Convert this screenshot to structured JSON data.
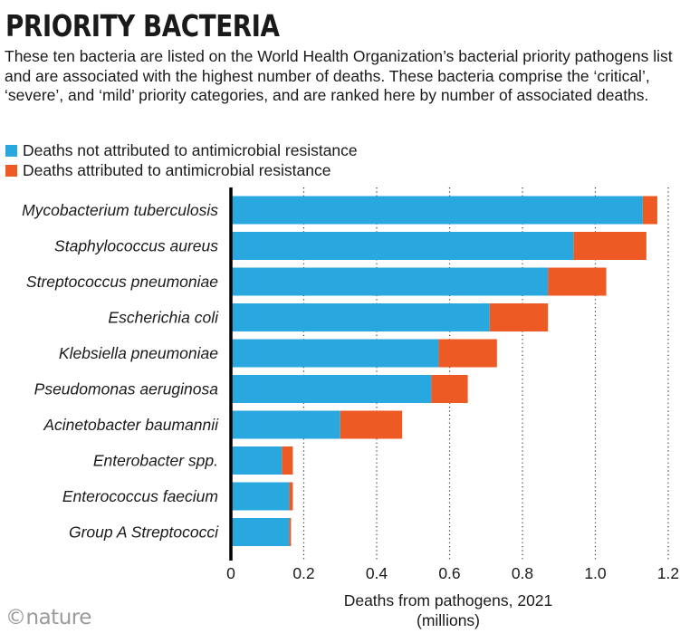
{
  "header": {
    "title": "PRIORITY BACTERIA",
    "description": "These ten bacteria are listed on the World Health Organization’s bacterial priority pathogens list and are associated with the highest number of deaths. These bacteria comprise the ‘critical’, ‘severe’, and ‘mild’ priority categories, and are ranked here by number of associated deaths."
  },
  "footer": {
    "logo": "©nature"
  },
  "colors": {
    "not_amr": "#29a8e0",
    "amr": "#ed5a24",
    "axis": "#000000"
  },
  "chart_data": {
    "type": "bar",
    "orientation": "horizontal",
    "stacked": true,
    "categories": [
      "Mycobacterium tuberculosis",
      "Staphylococcus aureus",
      "Streptococcus pneumoniae",
      "Escherichia coli",
      "Klebsiella pneumoniae",
      "Pseudomonas aeruginosa",
      "Acinetobacter baumannii",
      "Enterobacter spp.",
      "Enterococcus faecium",
      "Group A Streptococci"
    ],
    "series": [
      {
        "name": "Deaths not attributed to antimicrobial resistance",
        "values": [
          1.13,
          0.94,
          0.87,
          0.71,
          0.57,
          0.55,
          0.3,
          0.14,
          0.16,
          0.16
        ]
      },
      {
        "name": "Deaths attributed to antimicrobial resistance",
        "values": [
          0.04,
          0.2,
          0.16,
          0.16,
          0.16,
          0.1,
          0.17,
          0.03,
          0.01,
          0.005
        ]
      }
    ],
    "xlabel": "Deaths from pathogens, 2021 (millions)",
    "xlabel_line1": "Deaths from pathogens, 2021",
    "xlabel_line2": "(millions)",
    "xlim": [
      0,
      1.2
    ],
    "xticks": [
      "0",
      "0.2",
      "0.4",
      "0.6",
      "0.8",
      "1.0",
      "1.2"
    ],
    "grid": "vertical dotted"
  }
}
